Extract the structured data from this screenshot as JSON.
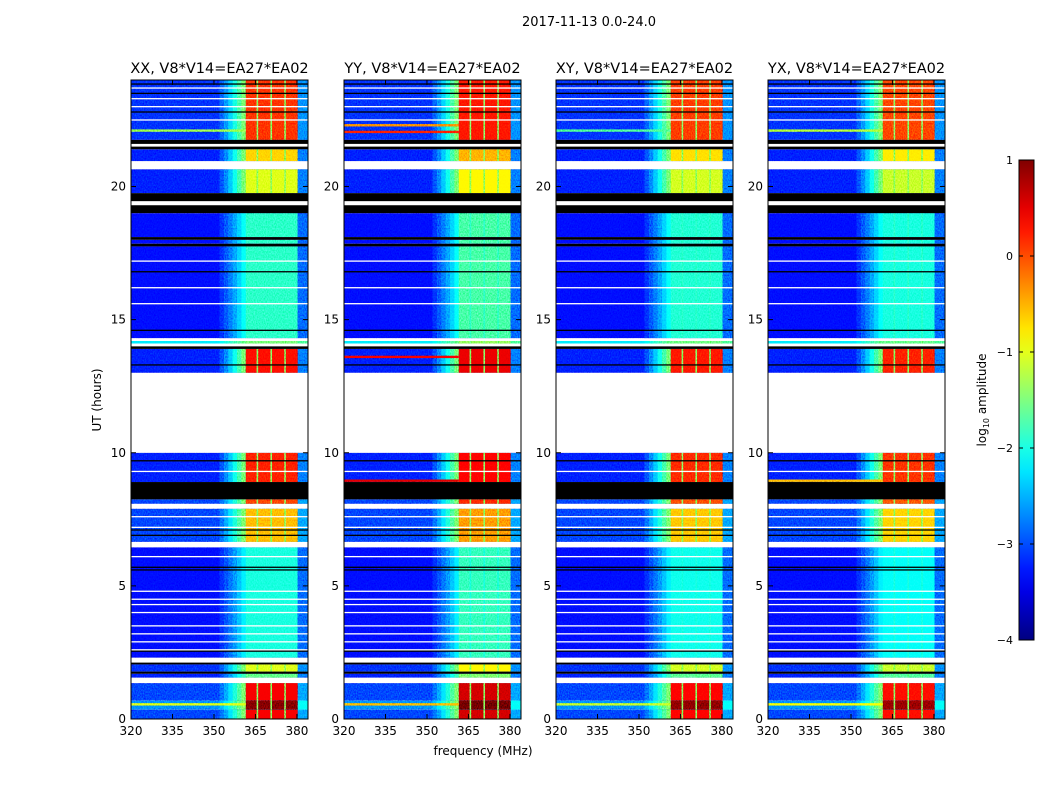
{
  "figure_title": "2017-11-13 0.0-24.0",
  "xlabel": "frequency (MHz)",
  "ylabel": "UT (hours)",
  "colorbar": {
    "label_main": "log",
    "label_sub": "10",
    "label_rest": " amplitude",
    "range": [
      -4,
      1
    ],
    "ticks": [
      1,
      0,
      -1,
      -2,
      -3,
      -4
    ],
    "tick_labels": [
      "1",
      "0",
      "−1",
      "−2",
      "−3",
      "−4"
    ],
    "colormap": "jet"
  },
  "chart_data": {
    "type": "heatmap",
    "x_range": [
      320,
      384
    ],
    "y_range": [
      0,
      24
    ],
    "x_ticks": [
      320,
      335,
      350,
      365,
      380
    ],
    "x_tick_labels": [
      "320",
      "335",
      "350",
      "365",
      "380"
    ],
    "y_ticks": [
      0,
      5,
      10,
      15,
      20
    ],
    "y_tick_labels": [
      "0",
      "5",
      "10",
      "15",
      "20"
    ],
    "band_mhz": [
      361.5,
      380.3
    ],
    "ramp_mhz": [
      352,
      361.5
    ],
    "channel_gaps_mhz": [
      365.7,
      370.7,
      375.7
    ],
    "panels": [
      {
        "title": "XX, V8*V14=EA27*EA02",
        "rfi_lines": [
          {
            "t": 22.1,
            "level": -1.3
          },
          {
            "t": 0.55,
            "level": -1.0
          }
        ]
      },
      {
        "title": "YY, V8*V14=EA27*EA02",
        "rfi_lines": [
          {
            "t": 22.05,
            "level": 0.2
          },
          {
            "t": 22.3,
            "level": -0.4
          },
          {
            "t": 8.95,
            "level": 0.5
          },
          {
            "t": 13.6,
            "level": 0.4
          },
          {
            "t": 0.55,
            "level": -0.6
          }
        ]
      },
      {
        "title": "XY, V8*V14=EA27*EA02",
        "rfi_lines": [
          {
            "t": 22.1,
            "level": -1.7
          },
          {
            "t": 0.55,
            "level": -1.1
          }
        ]
      },
      {
        "title": "YX, V8*V14=EA27*EA02",
        "rfi_lines": [
          {
            "t": 22.1,
            "level": -1.2
          },
          {
            "t": 8.95,
            "level": -0.6
          },
          {
            "t": 0.55,
            "level": -0.9
          }
        ]
      }
    ],
    "segments": [
      {
        "t0": 0,
        "t1": 0.35,
        "kind": "data",
        "bg": -3.0,
        "band": 0.4
      },
      {
        "t0": 0.35,
        "t1": 0.7,
        "kind": "data",
        "bg": -2.6,
        "band": 0.9
      },
      {
        "t0": 0.7,
        "t1": 1.35,
        "kind": "data",
        "bg": -3.0,
        "band": 0.4
      },
      {
        "t0": 1.35,
        "t1": 1.55,
        "kind": "white"
      },
      {
        "t0": 1.55,
        "t1": 1.7,
        "kind": "data",
        "bg": -3.2,
        "band": -1.6
      },
      {
        "t0": 1.7,
        "t1": 1.78,
        "kind": "black"
      },
      {
        "t0": 1.78,
        "t1": 2.05,
        "kind": "data",
        "bg": -3.1,
        "band": -1.0
      },
      {
        "t0": 2.05,
        "t1": 2.12,
        "kind": "black"
      },
      {
        "t0": 2.12,
        "t1": 2.3,
        "kind": "white"
      },
      {
        "t0": 2.3,
        "t1": 6.45,
        "kind": "data",
        "bg": -3.3,
        "band": -2.0
      },
      {
        "t0": 6.45,
        "t1": 6.65,
        "kind": "white"
      },
      {
        "t0": 6.65,
        "t1": 7.9,
        "kind": "data",
        "bg": -3.0,
        "band": -0.6
      },
      {
        "t0": 7.9,
        "t1": 8.08,
        "kind": "white"
      },
      {
        "t0": 8.08,
        "t1": 8.25,
        "kind": "data",
        "bg": -3.0,
        "band": 0.0
      },
      {
        "t0": 8.25,
        "t1": 8.9,
        "kind": "black"
      },
      {
        "t0": 8.9,
        "t1": 10.0,
        "kind": "data",
        "bg": -3.2,
        "band": 0.2
      },
      {
        "t0": 10.0,
        "t1": 13.0,
        "kind": "white"
      },
      {
        "t0": 13.0,
        "t1": 13.9,
        "kind": "data",
        "bg": -3.2,
        "band": 0.3
      },
      {
        "t0": 13.9,
        "t1": 14.0,
        "kind": "black"
      },
      {
        "t0": 14.0,
        "t1": 14.1,
        "kind": "white"
      },
      {
        "t0": 14.1,
        "t1": 14.2,
        "kind": "data",
        "bg": -2.2,
        "band": -1.5
      },
      {
        "t0": 14.2,
        "t1": 14.3,
        "kind": "white"
      },
      {
        "t0": 14.3,
        "t1": 17.75,
        "kind": "data",
        "bg": -3.3,
        "band": -1.9
      },
      {
        "t0": 17.75,
        "t1": 17.85,
        "kind": "black"
      },
      {
        "t0": 17.85,
        "t1": 18.0,
        "kind": "data",
        "bg": -3.3,
        "band": -1.9
      },
      {
        "t0": 18.0,
        "t1": 18.1,
        "kind": "black"
      },
      {
        "t0": 18.1,
        "t1": 19.0,
        "kind": "data",
        "bg": -3.3,
        "band": -1.9
      },
      {
        "t0": 19.0,
        "t1": 19.3,
        "kind": "black"
      },
      {
        "t0": 19.3,
        "t1": 19.45,
        "kind": "white"
      },
      {
        "t0": 19.45,
        "t1": 19.75,
        "kind": "black"
      },
      {
        "t0": 19.75,
        "t1": 20.65,
        "kind": "data",
        "bg": -3.2,
        "band": -1.0
      },
      {
        "t0": 20.65,
        "t1": 20.95,
        "kind": "white"
      },
      {
        "t0": 20.95,
        "t1": 21.4,
        "kind": "data",
        "bg": -3.2,
        "band": -0.7
      },
      {
        "t0": 21.4,
        "t1": 21.5,
        "kind": "black"
      },
      {
        "t0": 21.5,
        "t1": 21.6,
        "kind": "white"
      },
      {
        "t0": 21.6,
        "t1": 21.75,
        "kind": "black"
      },
      {
        "t0": 21.75,
        "t1": 24.0,
        "kind": "data",
        "bg": -3.1,
        "band": 0.1
      }
    ],
    "white_lines_h": [
      2.6,
      2.9,
      3.2,
      3.5,
      4.0,
      4.3,
      4.5,
      4.8,
      6.1,
      7.2,
      7.6,
      9.3,
      15.6,
      16.2,
      17.2,
      22.5,
      23.0,
      23.3,
      23.7
    ],
    "black_lines_h": [
      2.55,
      5.6,
      5.7,
      6.9,
      7.1,
      9.7,
      13.3,
      14.6,
      16.8,
      22.8,
      23.5,
      23.85
    ]
  }
}
